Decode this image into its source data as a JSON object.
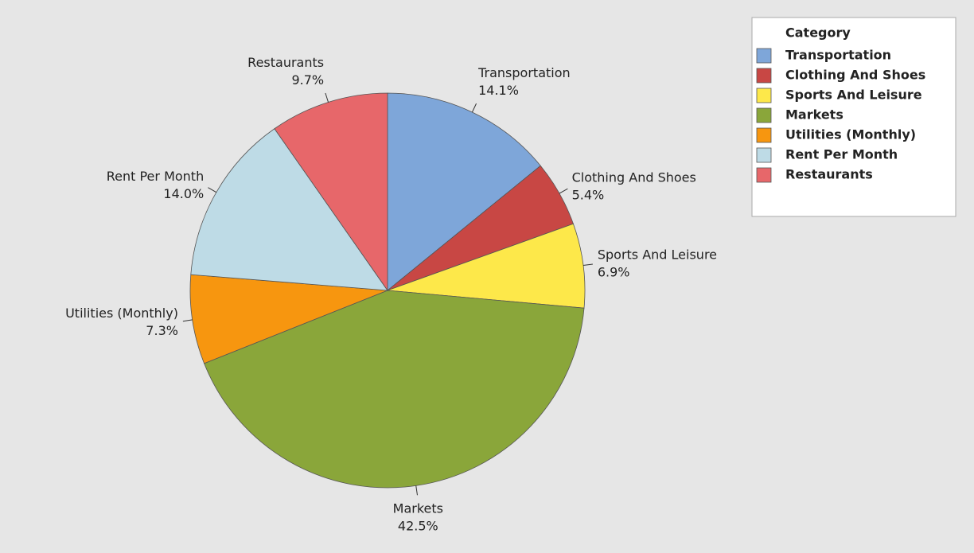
{
  "chart_data": {
    "type": "pie",
    "legend_title": "Category",
    "legend": "upper right",
    "categories": [
      "Transportation",
      "Clothing And Shoes",
      "Sports And Leisure",
      "Markets",
      "Utilities (Monthly)",
      "Rent Per Month",
      "Restaurants"
    ],
    "values": [
      14.1,
      5.4,
      6.9,
      42.5,
      7.3,
      14.0,
      9.7
    ],
    "value_labels": [
      "14.1%",
      "5.4%",
      "6.9%",
      "42.5%",
      "7.3%",
      "14.0%",
      "9.7%"
    ],
    "colors": [
      "#7ea6d9",
      "#c84744",
      "#fde84a",
      "#8aa63a",
      "#f7960f",
      "#bedbe6",
      "#e7676a"
    ]
  }
}
